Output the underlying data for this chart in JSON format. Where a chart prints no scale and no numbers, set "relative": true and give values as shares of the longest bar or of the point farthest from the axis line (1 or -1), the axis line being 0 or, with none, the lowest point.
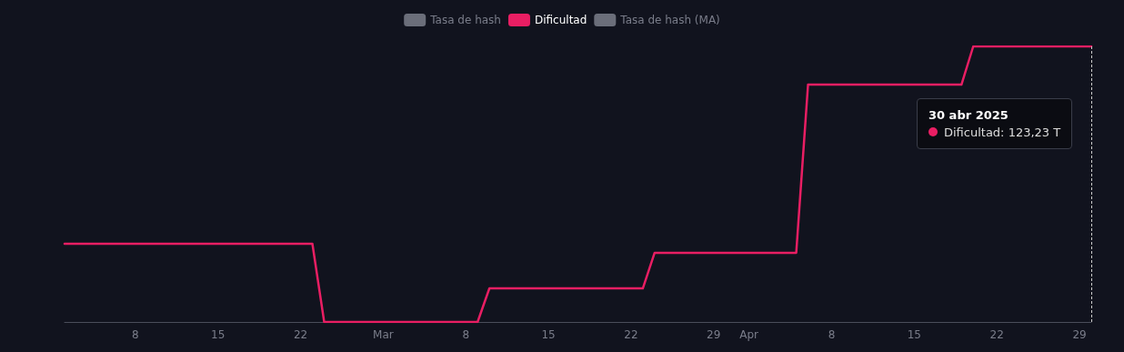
{
  "chart_data": {
    "type": "line",
    "relative": true,
    "x": [
      "2025-02-02",
      "2025-02-23",
      "2025-02-24",
      "2025-03-09",
      "2025-03-10",
      "2025-03-23",
      "2025-03-24",
      "2025-04-05",
      "2025-04-06",
      "2025-04-19",
      "2025-04-20",
      "2025-04-30"
    ],
    "xlim": [
      "2025-02-02",
      "2025-04-30"
    ],
    "xticks": [
      {
        "value": "2025-02-08",
        "label": "8"
      },
      {
        "value": "2025-02-15",
        "label": "15"
      },
      {
        "value": "2025-02-22",
        "label": "22"
      },
      {
        "value": "2025-03-01",
        "label": "Mar"
      },
      {
        "value": "2025-03-08",
        "label": "8"
      },
      {
        "value": "2025-03-15",
        "label": "15"
      },
      {
        "value": "2025-03-22",
        "label": "22"
      },
      {
        "value": "2025-03-29",
        "label": "29"
      },
      {
        "value": "2025-04-01",
        "label": "Apr"
      },
      {
        "value": "2025-04-08",
        "label": "8"
      },
      {
        "value": "2025-04-15",
        "label": "15"
      },
      {
        "value": "2025-04-22",
        "label": "22"
      },
      {
        "value": "2025-04-29",
        "label": "29"
      }
    ],
    "series": [
      {
        "name": "Tasa de hash",
        "color": "#6b6e7a",
        "values": [
          null,
          null,
          null,
          null,
          null,
          null,
          null,
          null,
          null,
          null,
          null,
          null
        ]
      },
      {
        "name": "Dificultad",
        "color": "#e91e63",
        "values": [
          0.284,
          0.284,
          0,
          0,
          0.122,
          0.122,
          0.251,
          0.251,
          0.861,
          0.861,
          1,
          1
        ]
      },
      {
        "name": "Tasa de hash (MA)",
        "color": "#6b6e7a",
        "values": [
          null,
          null,
          null,
          null,
          null,
          null,
          null,
          null,
          null,
          null,
          null,
          null
        ]
      }
    ],
    "legend": "top",
    "grid": false,
    "marker": "none",
    "line_style": "solid",
    "annotations": [
      "30 abr 2025",
      "Dificultad: 123,23 T"
    ]
  }
}
